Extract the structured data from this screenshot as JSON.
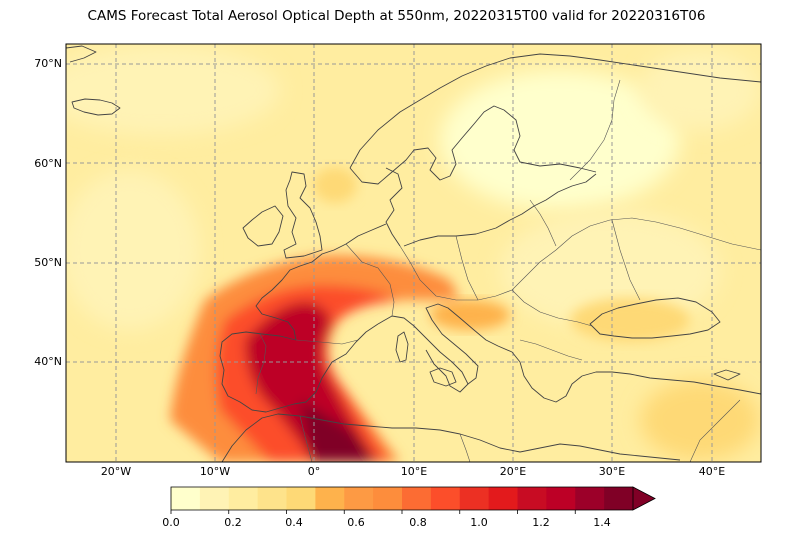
{
  "title": "CAMS Forecast Total Aerosol Optical Depth at 550nm, 20220315T00 valid for 20220316T06",
  "latitude_labels": [
    "70°N",
    "60°N",
    "50°N",
    "40°N"
  ],
  "longitude_labels": [
    "20°W",
    "10°W",
    "0°",
    "10°E",
    "20°E",
    "30°E",
    "40°E"
  ],
  "colorbar": {
    "tick_labels": [
      "0.0",
      "0.2",
      "0.4",
      "0.6",
      "0.8",
      "1.0",
      "1.2",
      "1.4"
    ],
    "colors": [
      "#ffffcc",
      "#fff3b5",
      "#ffeda0",
      "#fee38b",
      "#fed976",
      "#feb24c",
      "#fd9a44",
      "#fd8d3c",
      "#fc6c33",
      "#fc4e2a",
      "#ec3023",
      "#e31a1c",
      "#c80c23",
      "#bd0026",
      "#9c0029",
      "#800026"
    ],
    "extend": "max"
  },
  "map": {
    "projection": "PlateCarree",
    "extent_lon": [
      -25,
      45
    ],
    "extent_lat": [
      30,
      72
    ],
    "gridlines": "dashed",
    "coastlines": true,
    "borders": true
  }
}
